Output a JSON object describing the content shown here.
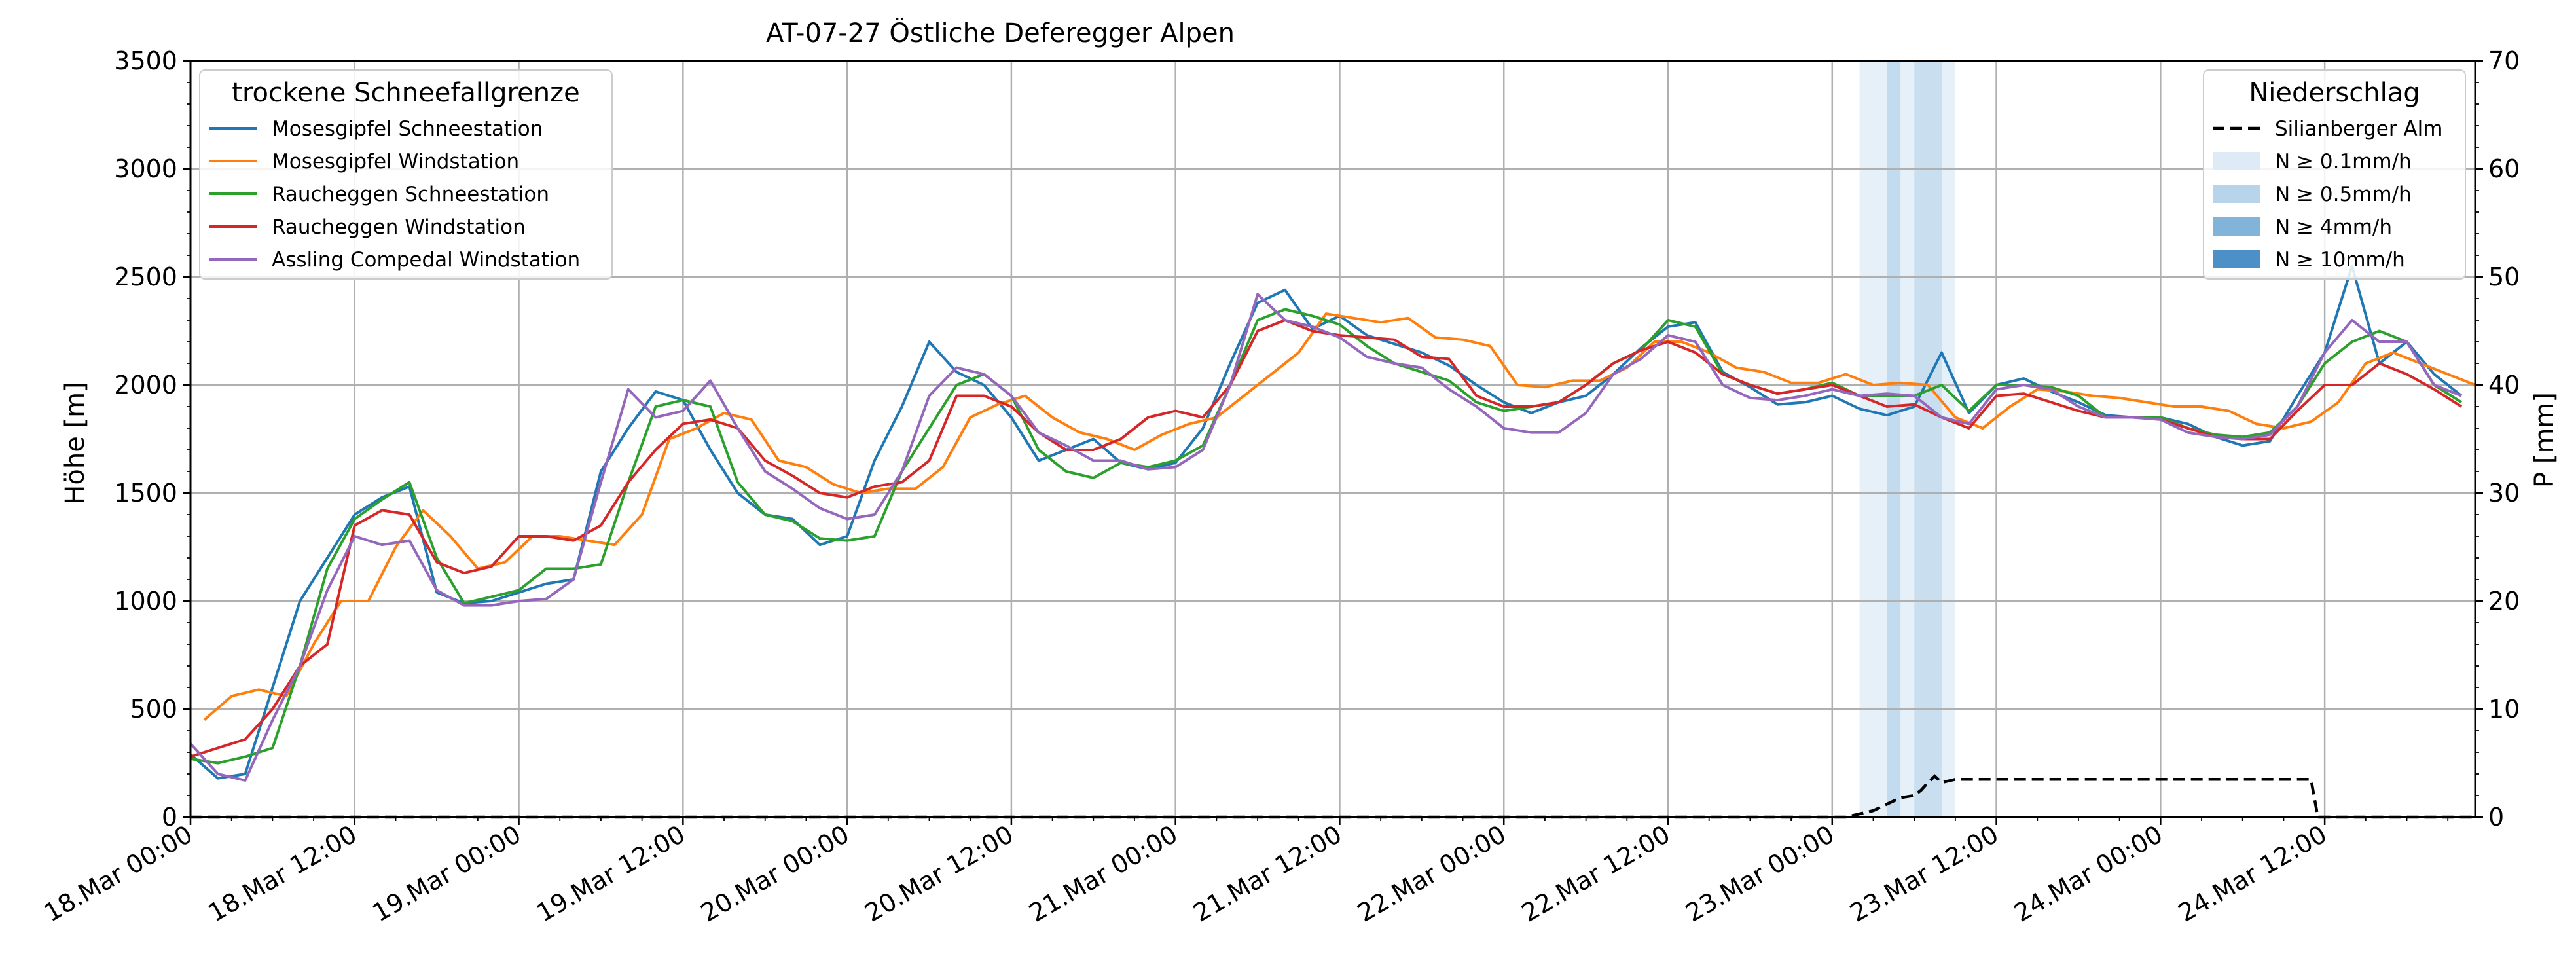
{
  "chart_data": {
    "type": "line",
    "title": "AT-07-27 Östliche Deferegger Alpen",
    "ylabel": "Höhe [m]",
    "y2label": "P [mm]",
    "ylim": [
      0,
      3500
    ],
    "y2lim": [
      0,
      70
    ],
    "yticks": [
      0,
      500,
      1000,
      1500,
      2000,
      2500,
      3000,
      3500
    ],
    "y2ticks": [
      0,
      10,
      20,
      30,
      40,
      50,
      60,
      70
    ],
    "x_range_hours": [
      0,
      167
    ],
    "x_labels": [
      "18.Mar 00:00",
      "18.Mar 12:00",
      "19.Mar 00:00",
      "19.Mar 12:00",
      "20.Mar 00:00",
      "20.Mar 12:00",
      "21.Mar 00:00",
      "21.Mar 12:00",
      "22.Mar 00:00",
      "22.Mar 12:00",
      "23.Mar 00:00",
      "23.Mar 12:00",
      "24.Mar 00:00",
      "24.Mar 12:00"
    ],
    "x_label_hours": [
      0,
      12,
      24,
      36,
      48,
      60,
      72,
      84,
      96,
      108,
      120,
      132,
      144,
      156
    ],
    "grid": true,
    "legend_left": {
      "title": "trockene Schneefallgrenze",
      "placement": "top-left"
    },
    "legend_right": {
      "title": "Niederschlag",
      "placement": "top-right",
      "items": [
        {
          "label": "Silianberger Alm",
          "style": "dashed",
          "color": "#000000"
        },
        {
          "label": "N ≥ 0.1mm/h",
          "color": "#deebf7"
        },
        {
          "label": "N ≥ 0.5mm/h",
          "color": "#b7d4ea"
        },
        {
          "label": "N ≥ 4mm/h",
          "color": "#82b3d9"
        },
        {
          "label": "N ≥ 10mm/h",
          "color": "#4d90c7"
        }
      ]
    },
    "series": [
      {
        "name": "Mosesgipfel Schneestation",
        "color": "#1f77b4",
        "x": [
          0,
          2,
          4,
          6,
          8,
          10,
          12,
          14,
          16,
          18,
          20,
          22,
          24,
          26,
          28,
          30,
          32,
          34,
          36,
          38,
          40,
          42,
          44,
          46,
          48,
          50,
          52,
          54,
          56,
          58,
          60,
          62,
          64,
          66,
          68,
          70,
          72,
          74,
          76,
          78,
          80,
          82,
          84,
          86,
          88,
          90,
          92,
          94,
          96,
          98,
          100,
          102,
          104,
          106,
          108,
          110,
          112,
          114,
          116,
          118,
          120,
          122,
          124,
          126,
          128,
          130,
          132,
          134,
          136,
          138,
          140,
          142,
          144,
          146,
          148,
          150,
          152,
          154,
          156,
          158,
          160,
          162,
          164,
          166
        ],
        "y": [
          290,
          180,
          200,
          600,
          1000,
          1200,
          1400,
          1480,
          1530,
          1040,
          990,
          1000,
          1040,
          1080,
          1100,
          1600,
          1800,
          1970,
          1930,
          1700,
          1500,
          1400,
          1380,
          1260,
          1300,
          1650,
          1900,
          2200,
          2060,
          2000,
          1850,
          1650,
          1700,
          1750,
          1640,
          1610,
          1640,
          1800,
          2100,
          2380,
          2440,
          2260,
          2320,
          2230,
          2190,
          2150,
          2090,
          2000,
          1920,
          1870,
          1920,
          1950,
          2050,
          2170,
          2270,
          2290,
          2060,
          1990,
          1910,
          1920,
          1950,
          1890,
          1860,
          1900,
          2150,
          1870,
          2000,
          2030,
          1970,
          1920,
          1860,
          1850,
          1850,
          1820,
          1760,
          1720,
          1740,
          1950,
          2150,
          2550,
          2100,
          2200,
          2050,
          1950
        ]
      },
      {
        "name": "Mosesgipfel Windstation",
        "color": "#ff7f0e",
        "x": [
          1,
          3,
          5,
          7,
          9,
          11,
          13,
          15,
          17,
          19,
          21,
          23,
          25,
          27,
          29,
          31,
          33,
          35,
          37,
          39,
          41,
          43,
          45,
          47,
          49,
          51,
          53,
          55,
          57,
          59,
          61,
          63,
          65,
          67,
          69,
          71,
          73,
          75,
          77,
          79,
          81,
          83,
          85,
          87,
          89,
          91,
          93,
          95,
          97,
          99,
          101,
          103,
          105,
          107,
          109,
          111,
          113,
          115,
          117,
          119,
          121,
          123,
          125,
          127,
          129,
          131,
          133,
          135,
          137,
          139,
          141,
          143,
          145,
          147,
          149,
          151,
          153,
          155,
          157,
          159,
          161,
          163,
          165,
          167
        ],
        "y": [
          450,
          560,
          590,
          560,
          800,
          1000,
          1000,
          1250,
          1420,
          1300,
          1150,
          1180,
          1300,
          1300,
          1280,
          1260,
          1400,
          1750,
          1800,
          1870,
          1840,
          1650,
          1620,
          1540,
          1500,
          1520,
          1520,
          1620,
          1850,
          1910,
          1950,
          1850,
          1780,
          1750,
          1700,
          1770,
          1820,
          1850,
          1950,
          2050,
          2150,
          2330,
          2310,
          2290,
          2310,
          2220,
          2210,
          2180,
          2000,
          1990,
          2020,
          2020,
          2080,
          2200,
          2200,
          2150,
          2080,
          2060,
          2010,
          2010,
          2050,
          2000,
          2010,
          2000,
          1850,
          1800,
          1900,
          1980,
          1970,
          1950,
          1940,
          1920,
          1900,
          1900,
          1880,
          1820,
          1800,
          1830,
          1920,
          2100,
          2150,
          2100,
          2050,
          2000
        ]
      },
      {
        "name": "Raucheggen Schneestation",
        "color": "#2ca02c",
        "x": [
          0,
          2,
          4,
          6,
          8,
          10,
          12,
          14,
          16,
          18,
          20,
          22,
          24,
          26,
          28,
          30,
          32,
          34,
          36,
          38,
          40,
          42,
          44,
          46,
          48,
          50,
          52,
          54,
          56,
          58,
          60,
          62,
          64,
          66,
          68,
          70,
          72,
          74,
          76,
          78,
          80,
          82,
          84,
          86,
          88,
          90,
          92,
          94,
          96,
          98,
          100,
          102,
          104,
          106,
          108,
          110,
          112,
          114,
          116,
          118,
          120,
          122,
          124,
          126,
          128,
          130,
          132,
          134,
          136,
          138,
          140,
          142,
          144,
          146,
          148,
          150,
          152,
          154,
          156,
          158,
          160,
          162,
          164,
          166
        ],
        "y": [
          270,
          250,
          280,
          320,
          700,
          1150,
          1380,
          1470,
          1550,
          1200,
          990,
          1020,
          1050,
          1150,
          1150,
          1170,
          1550,
          1900,
          1930,
          1900,
          1550,
          1400,
          1370,
          1290,
          1280,
          1300,
          1600,
          1800,
          2000,
          2050,
          1950,
          1700,
          1600,
          1570,
          1640,
          1620,
          1650,
          1720,
          2000,
          2300,
          2350,
          2320,
          2280,
          2180,
          2100,
          2060,
          2020,
          1920,
          1880,
          1900,
          1920,
          2000,
          2100,
          2160,
          2300,
          2270,
          2050,
          2000,
          1960,
          1980,
          2010,
          1950,
          1950,
          1950,
          2000,
          1880,
          2000,
          2000,
          1990,
          1950,
          1850,
          1850,
          1850,
          1800,
          1770,
          1760,
          1780,
          1900,
          2100,
          2200,
          2250,
          2200,
          2000,
          1920
        ]
      },
      {
        "name": "Raucheggen Windstation",
        "color": "#d62728",
        "x": [
          0,
          2,
          4,
          6,
          8,
          10,
          12,
          14,
          16,
          18,
          20,
          22,
          24,
          26,
          28,
          30,
          32,
          34,
          36,
          38,
          40,
          42,
          44,
          46,
          48,
          50,
          52,
          54,
          56,
          58,
          60,
          62,
          64,
          66,
          68,
          70,
          72,
          74,
          76,
          78,
          80,
          82,
          84,
          86,
          88,
          90,
          92,
          94,
          96,
          98,
          100,
          102,
          104,
          106,
          108,
          110,
          112,
          114,
          116,
          118,
          120,
          122,
          124,
          126,
          128,
          130,
          132,
          134,
          136,
          138,
          140,
          142,
          144,
          146,
          148,
          150,
          152,
          154,
          156,
          158,
          160,
          162,
          164,
          166
        ],
        "y": [
          280,
          320,
          360,
          500,
          700,
          800,
          1350,
          1420,
          1400,
          1180,
          1130,
          1160,
          1300,
          1300,
          1280,
          1350,
          1550,
          1700,
          1820,
          1840,
          1800,
          1650,
          1580,
          1500,
          1480,
          1530,
          1550,
          1650,
          1950,
          1950,
          1900,
          1780,
          1700,
          1700,
          1750,
          1850,
          1880,
          1850,
          2000,
          2250,
          2300,
          2250,
          2230,
          2220,
          2210,
          2130,
          2120,
          1950,
          1900,
          1900,
          1920,
          2000,
          2100,
          2160,
          2200,
          2150,
          2050,
          2000,
          1960,
          1980,
          2000,
          1950,
          1900,
          1910,
          1850,
          1800,
          1950,
          1960,
          1920,
          1880,
          1850,
          1850,
          1840,
          1800,
          1760,
          1750,
          1750,
          1880,
          2000,
          2000,
          2100,
          2050,
          1980,
          1900
        ]
      },
      {
        "name": "Assling Compedal Windstation",
        "color": "#9467bd",
        "x": [
          0,
          2,
          4,
          6,
          8,
          10,
          12,
          14,
          16,
          18,
          20,
          22,
          24,
          26,
          28,
          30,
          32,
          34,
          36,
          38,
          40,
          42,
          44,
          46,
          48,
          50,
          52,
          54,
          56,
          58,
          60,
          62,
          64,
          66,
          68,
          70,
          72,
          74,
          76,
          78,
          80,
          82,
          84,
          86,
          88,
          90,
          92,
          94,
          96,
          98,
          100,
          102,
          104,
          106,
          108,
          110,
          112,
          114,
          116,
          118,
          120,
          122,
          124,
          126,
          128,
          130,
          132,
          134,
          136,
          138,
          140,
          142,
          144,
          146,
          148,
          150,
          152,
          154,
          156,
          158,
          160,
          162,
          164,
          166
        ],
        "y": [
          340,
          200,
          170,
          450,
          700,
          1050,
          1300,
          1260,
          1280,
          1050,
          980,
          980,
          1000,
          1010,
          1100,
          1550,
          1980,
          1850,
          1880,
          2020,
          1800,
          1600,
          1520,
          1430,
          1380,
          1400,
          1600,
          1950,
          2080,
          2050,
          1950,
          1780,
          1720,
          1650,
          1650,
          1610,
          1620,
          1700,
          2000,
          2420,
          2300,
          2270,
          2220,
          2130,
          2100,
          2080,
          1980,
          1900,
          1800,
          1780,
          1780,
          1870,
          2050,
          2120,
          2230,
          2200,
          2000,
          1940,
          1930,
          1950,
          1980,
          1950,
          1960,
          1950,
          1850,
          1820,
          1980,
          2000,
          1980,
          1900,
          1850,
          1850,
          1840,
          1780,
          1760,
          1750,
          1770,
          1900,
          2150,
          2300,
          2200,
          2200,
          2000,
          1950
        ]
      }
    ],
    "precipitation_bands": [
      {
        "start_hour": 122,
        "end_hour": 125,
        "level": "N ≥ 0.1mm/h"
      },
      {
        "start_hour": 124,
        "end_hour": 125,
        "level": "N ≥ 0.5mm/h"
      },
      {
        "start_hour": 125,
        "end_hour": 126,
        "level": "N ≥ 0.1mm/h"
      },
      {
        "start_hour": 126,
        "end_hour": 128,
        "level": "N ≥ 0.5mm/h"
      },
      {
        "start_hour": 128,
        "end_hour": 129,
        "level": "N ≥ 0.1mm/h"
      }
    ],
    "precipitation_cumulative": {
      "name": "Silianberger Alm",
      "x": [
        0,
        121,
        122,
        123,
        124,
        125,
        126,
        126.5,
        127,
        127.5,
        128,
        129,
        130,
        140,
        150,
        154,
        155,
        155.5,
        167
      ],
      "y": [
        0,
        0,
        0.3,
        0.6,
        1.2,
        1.8,
        2,
        2.5,
        3.2,
        3.8,
        3.2,
        3.5,
        3.5,
        3.5,
        3.5,
        3.5,
        3.5,
        0,
        0
      ]
    }
  }
}
